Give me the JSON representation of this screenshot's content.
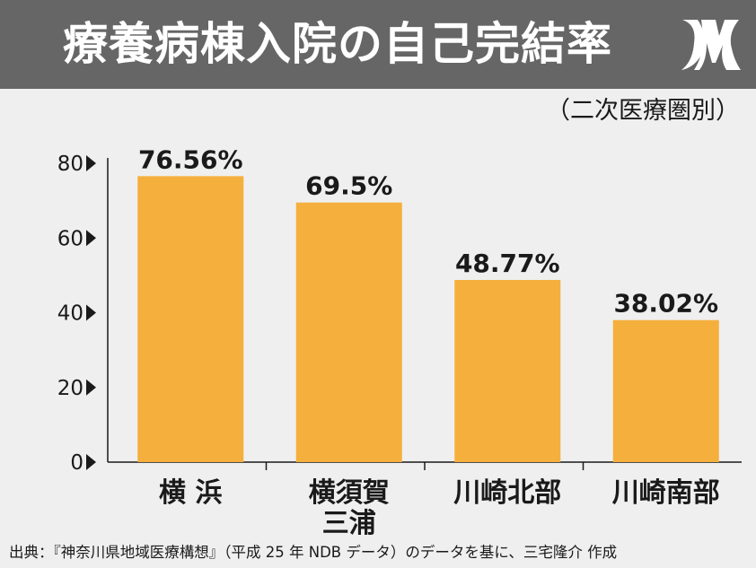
{
  "header": {
    "title": "療養病棟入院の自己完結率",
    "logo_icon": "jr-logo-icon",
    "background_color": "#666666"
  },
  "subtitle": "（二次医療圏別）",
  "source_note": "出典：『神奈川県地域医療構想』（平成 25 年 NDB データ）のデータを基に、三宅隆介 作成",
  "chart_data": {
    "type": "bar",
    "categories": [
      "横 浜",
      "横須賀\n三浦",
      "川崎北部",
      "川崎南部"
    ],
    "values": [
      76.56,
      69.5,
      48.77,
      38.02
    ],
    "value_labels": [
      "76.56%",
      "69.5%",
      "48.77%",
      "38.02%"
    ],
    "y_ticks": [
      0,
      20,
      40,
      60,
      80
    ],
    "ylim": [
      0,
      80
    ],
    "bar_color": "#f5af3c",
    "grid": false,
    "legend": "none"
  }
}
